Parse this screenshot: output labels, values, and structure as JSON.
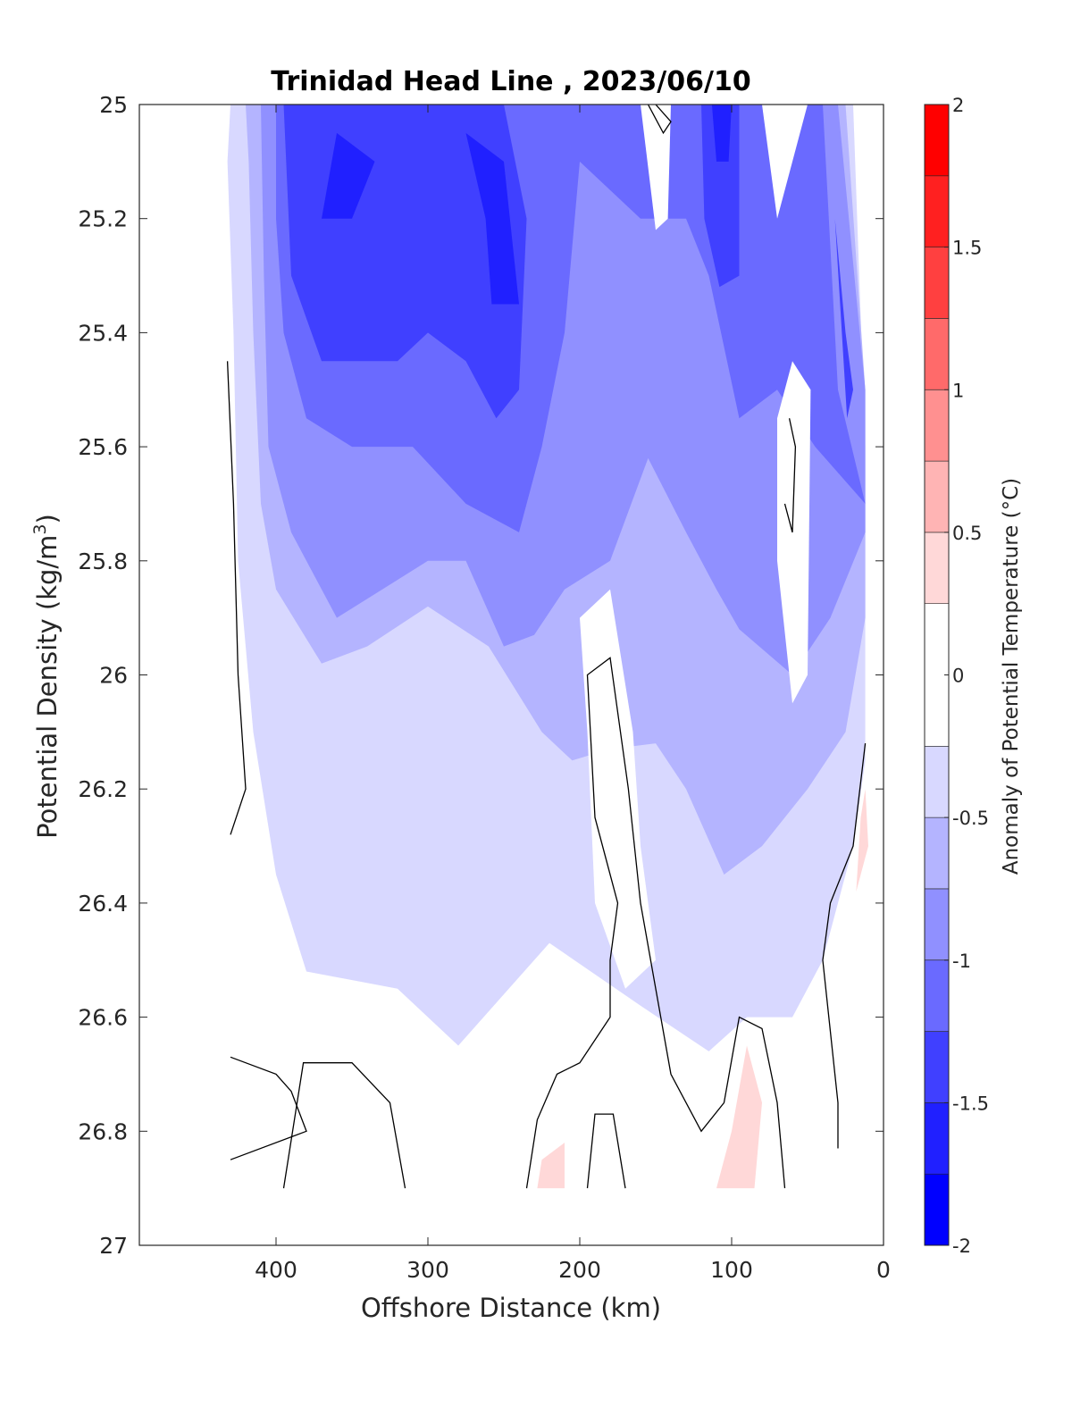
{
  "chart_data": {
    "type": "contour",
    "title": "Trinidad Head Line , 2023/06/10",
    "xlabel": "Offshore Distance (km)",
    "ylabel_main": "Potential Density (kg/m",
    "ylabel_sup": "3",
    "ylabel_close": ")",
    "x_reversed": true,
    "xlim": [
      0,
      490
    ],
    "ylim": [
      25,
      27
    ],
    "y_reversed": true,
    "xticks": [
      400,
      300,
      200,
      100,
      0
    ],
    "yticks": [
      25,
      25.2,
      25.4,
      25.6,
      25.8,
      26,
      26.2,
      26.4,
      26.6,
      26.8,
      27
    ],
    "colorbar": {
      "label": "Anomaly of Potential Temperature (°C)",
      "range": [
        -2,
        2
      ],
      "ticks": [
        -2,
        -1.5,
        -1,
        -0.5,
        0,
        0.5,
        1,
        1.5,
        2
      ],
      "levels": [
        {
          "from": -2.0,
          "to": -1.75,
          "color": "#0000ff"
        },
        {
          "from": -1.75,
          "to": -1.5,
          "color": "#2020ff"
        },
        {
          "from": -1.5,
          "to": -1.25,
          "color": "#4040ff"
        },
        {
          "from": -1.25,
          "to": -1.0,
          "color": "#6a6aff"
        },
        {
          "from": -1.0,
          "to": -0.75,
          "color": "#9090ff"
        },
        {
          "from": -0.75,
          "to": -0.5,
          "color": "#b4b4ff"
        },
        {
          "from": -0.5,
          "to": -0.25,
          "color": "#d8d8ff"
        },
        {
          "from": -0.25,
          "to": 0.25,
          "color": "#ffffff"
        },
        {
          "from": 0.25,
          "to": 0.5,
          "color": "#ffd8d8"
        },
        {
          "from": 0.5,
          "to": 0.75,
          "color": "#ffb4b4"
        },
        {
          "from": 0.75,
          "to": 1.0,
          "color": "#ff9090"
        },
        {
          "from": 1.0,
          "to": 1.25,
          "color": "#ff6a6a"
        },
        {
          "from": 1.25,
          "to": 1.5,
          "color": "#ff4040"
        },
        {
          "from": 1.5,
          "to": 1.75,
          "color": "#ff2020"
        },
        {
          "from": 1.75,
          "to": 2.0,
          "color": "#ff0000"
        }
      ]
    },
    "regions": [
      {
        "level": -0.375,
        "points": [
          [
            430,
            25
          ],
          [
            20,
            25
          ],
          [
            12,
            25.6
          ],
          [
            12,
            26.15
          ],
          [
            20,
            26.3
          ],
          [
            40,
            26.5
          ],
          [
            60,
            26.6
          ],
          [
            90,
            26.6
          ],
          [
            115,
            26.66
          ],
          [
            160,
            26.58
          ],
          [
            220,
            26.47
          ],
          [
            280,
            26.65
          ],
          [
            320,
            26.55
          ],
          [
            380,
            26.52
          ],
          [
            400,
            26.35
          ],
          [
            415,
            26.1
          ],
          [
            425,
            25.8
          ],
          [
            428,
            25.4
          ],
          [
            432,
            25.1
          ]
        ]
      },
      {
        "level": -0.625,
        "points": [
          [
            420,
            25
          ],
          [
            25,
            25
          ],
          [
            12,
            25.5
          ],
          [
            12,
            25.9
          ],
          [
            25,
            26.1
          ],
          [
            50,
            26.2
          ],
          [
            80,
            26.3
          ],
          [
            105,
            26.35
          ],
          [
            130,
            26.2
          ],
          [
            150,
            26.12
          ],
          [
            180,
            26.13
          ],
          [
            205,
            26.15
          ],
          [
            225,
            26.1
          ],
          [
            260,
            25.95
          ],
          [
            300,
            25.88
          ],
          [
            340,
            25.95
          ],
          [
            370,
            25.98
          ],
          [
            400,
            25.85
          ],
          [
            410,
            25.7
          ],
          [
            415,
            25.4
          ],
          [
            418,
            25.1
          ]
        ]
      },
      {
        "level": -0.875,
        "points": [
          [
            410,
            25
          ],
          [
            30,
            25
          ],
          [
            12,
            25.5
          ],
          [
            12,
            25.75
          ],
          [
            35,
            25.9
          ],
          [
            60,
            26.0
          ],
          [
            95,
            25.92
          ],
          [
            110,
            25.85
          ],
          [
            130,
            25.75
          ],
          [
            155,
            25.62
          ],
          [
            180,
            25.8
          ],
          [
            210,
            25.85
          ],
          [
            230,
            25.93
          ],
          [
            250,
            25.95
          ],
          [
            275,
            25.8
          ],
          [
            300,
            25.8
          ],
          [
            330,
            25.85
          ],
          [
            360,
            25.9
          ],
          [
            390,
            25.75
          ],
          [
            405,
            25.6
          ],
          [
            408,
            25.3
          ]
        ]
      },
      {
        "level": -1.125,
        "points": [
          [
            400,
            25
          ],
          [
            40,
            25
          ],
          [
            30,
            25.5
          ],
          [
            12,
            25.7
          ],
          [
            45,
            25.6
          ],
          [
            70,
            25.5
          ],
          [
            95,
            25.55
          ],
          [
            115,
            25.3
          ],
          [
            130,
            25.2
          ],
          [
            160,
            25.2
          ],
          [
            200,
            25.1
          ],
          [
            210,
            25.4
          ],
          [
            225,
            25.6
          ],
          [
            240,
            25.75
          ],
          [
            275,
            25.7
          ],
          [
            310,
            25.6
          ],
          [
            350,
            25.6
          ],
          [
            380,
            25.55
          ],
          [
            395,
            25.4
          ],
          [
            400,
            25.2
          ]
        ]
      },
      {
        "level": -1.375,
        "points": [
          [
            395,
            25
          ],
          [
            250,
            25
          ],
          [
            235,
            25.2
          ],
          [
            240,
            25.5
          ],
          [
            255,
            25.55
          ],
          [
            275,
            25.45
          ],
          [
            300,
            25.4
          ],
          [
            320,
            25.45
          ],
          [
            345,
            25.45
          ],
          [
            370,
            25.45
          ],
          [
            390,
            25.3
          ]
        ]
      },
      {
        "level": -1.625,
        "points": [
          [
            360,
            25.05
          ],
          [
            335,
            25.1
          ],
          [
            350,
            25.2
          ],
          [
            370,
            25.2
          ]
        ]
      },
      {
        "level": -1.625,
        "points": [
          [
            275,
            25.05
          ],
          [
            250,
            25.1
          ],
          [
            240,
            25.35
          ],
          [
            258,
            25.35
          ],
          [
            262,
            25.2
          ]
        ]
      },
      {
        "level": -1.375,
        "points": [
          [
            120,
            25
          ],
          [
            95,
            25
          ],
          [
            95,
            25.3
          ],
          [
            108,
            25.32
          ],
          [
            118,
            25.2
          ]
        ]
      },
      {
        "level": -1.625,
        "points": [
          [
            113,
            25
          ],
          [
            100,
            25
          ],
          [
            102,
            25.1
          ],
          [
            110,
            25.1
          ]
        ]
      },
      {
        "level": -1.375,
        "points": [
          [
            32,
            25.2
          ],
          [
            25,
            25.4
          ],
          [
            20,
            25.5
          ],
          [
            24,
            25.55
          ]
        ]
      },
      {
        "level": -0.125,
        "points": [
          [
            160,
            25
          ],
          [
            140,
            25
          ],
          [
            142,
            25.2
          ],
          [
            150,
            25.22
          ]
        ]
      },
      {
        "level": -0.125,
        "points": [
          [
            80,
            25
          ],
          [
            50,
            25
          ],
          [
            70,
            25.2
          ]
        ]
      },
      {
        "level": -0.125,
        "points": [
          [
            60,
            25.45
          ],
          [
            48,
            25.5
          ],
          [
            50,
            26.0
          ],
          [
            60,
            26.05
          ],
          [
            70,
            25.8
          ],
          [
            70,
            25.55
          ]
        ]
      },
      {
        "level": -0.125,
        "points": [
          [
            200,
            25.9
          ],
          [
            180,
            25.85
          ],
          [
            165,
            26.1
          ],
          [
            160,
            26.3
          ],
          [
            150,
            26.5
          ],
          [
            170,
            26.55
          ],
          [
            190,
            26.4
          ],
          [
            195,
            26.1
          ]
        ]
      },
      {
        "level": -0.375,
        "points": [
          [
            65,
            26.45
          ],
          [
            55,
            26.52
          ],
          [
            65,
            26.58
          ],
          [
            72,
            26.52
          ]
        ]
      },
      {
        "level": 0.375,
        "points": [
          [
            225,
            26.85
          ],
          [
            210,
            26.82
          ],
          [
            210,
            26.9
          ],
          [
            228,
            26.9
          ]
        ]
      },
      {
        "level": 0.375,
        "points": [
          [
            90,
            26.65
          ],
          [
            80,
            26.75
          ],
          [
            85,
            26.9
          ],
          [
            110,
            26.9
          ],
          [
            100,
            26.8
          ]
        ]
      },
      {
        "level": 0.375,
        "points": [
          [
            15,
            26.25
          ],
          [
            12,
            26.2
          ],
          [
            10,
            26.3
          ],
          [
            18,
            26.38
          ]
        ]
      }
    ],
    "contour_lines": [
      [
        [
          432,
          25.45
        ],
        [
          428,
          25.7
        ],
        [
          425,
          26.0
        ],
        [
          420,
          26.2
        ],
        [
          430,
          26.28
        ]
      ],
      [
        [
          430,
          26.67
        ],
        [
          400,
          26.7
        ],
        [
          390,
          26.73
        ],
        [
          380,
          26.8
        ],
        [
          430,
          26.85
        ]
      ],
      [
        [
          395,
          26.9
        ],
        [
          382,
          26.68
        ],
        [
          350,
          26.68
        ],
        [
          325,
          26.75
        ],
        [
          315,
          26.9
        ]
      ],
      [
        [
          235,
          26.9
        ],
        [
          228,
          26.78
        ],
        [
          215,
          26.7
        ],
        [
          200,
          26.68
        ],
        [
          180,
          26.6
        ],
        [
          180,
          26.5
        ],
        [
          175,
          26.4
        ],
        [
          190,
          26.25
        ],
        [
          195,
          26.0
        ],
        [
          180,
          25.97
        ],
        [
          168,
          26.2
        ],
        [
          160,
          26.4
        ],
        [
          150,
          26.55
        ],
        [
          140,
          26.7
        ],
        [
          120,
          26.8
        ],
        [
          105,
          26.75
        ],
        [
          95,
          26.6
        ],
        [
          80,
          26.62
        ],
        [
          70,
          26.75
        ],
        [
          65,
          26.9
        ]
      ],
      [
        [
          195,
          26.9
        ],
        [
          190,
          26.77
        ],
        [
          178,
          26.77
        ],
        [
          170,
          26.9
        ]
      ],
      [
        [
          62,
          25.55
        ],
        [
          58,
          25.6
        ],
        [
          60,
          25.75
        ],
        [
          65,
          25.7
        ]
      ],
      [
        [
          12,
          26.12
        ],
        [
          20,
          26.3
        ],
        [
          35,
          26.4
        ],
        [
          40,
          26.5
        ],
        [
          30,
          26.75
        ],
        [
          30,
          26.83
        ]
      ],
      [
        [
          150,
          25
        ],
        [
          140,
          25.03
        ],
        [
          145,
          25.05
        ],
        [
          155,
          25.0
        ]
      ]
    ]
  }
}
